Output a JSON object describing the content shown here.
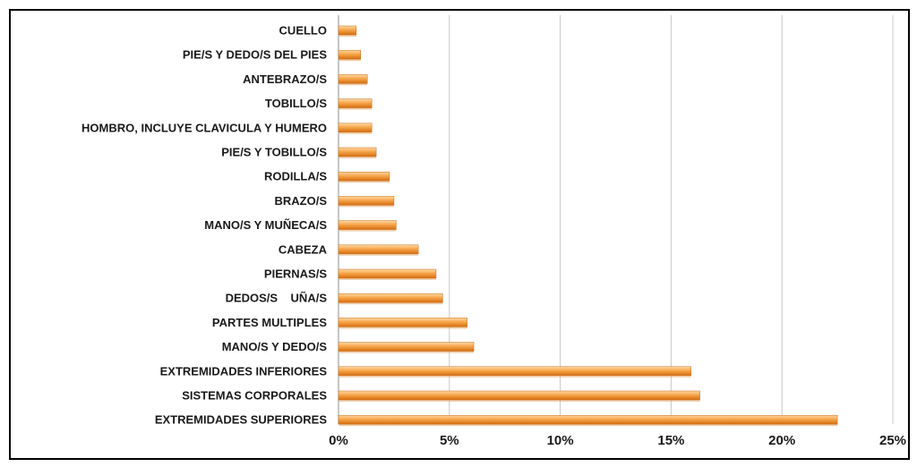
{
  "chart_data": {
    "type": "bar",
    "orientation": "horizontal",
    "categories": [
      "CUELLO",
      "PIE/S Y DEDO/S DEL PIES",
      "ANTEBRAZO/S",
      "TOBILLO/S",
      "HOMBRO, INCLUYE CLAVICULA Y HUMERO",
      "PIE/S Y TOBILLO/S",
      "RODILLA/S",
      "BRAZO/S",
      "MANO/S Y MUÑECA/S",
      "CABEZA",
      "PIERNAS/S",
      "DEDOS/S    UÑA/S",
      "PARTES MULTIPLES",
      "MANO/S Y DEDO/S",
      "EXTREMIDADES INFERIORES",
      "SISTEMAS CORPORALES",
      "EXTREMIDADES SUPERIORES"
    ],
    "values": [
      0.8,
      1.0,
      1.3,
      1.5,
      1.5,
      1.7,
      2.3,
      2.5,
      2.6,
      3.6,
      4.4,
      4.7,
      5.8,
      6.1,
      15.9,
      16.3,
      22.5
    ],
    "xlim": [
      0,
      25
    ],
    "xticks": [
      "0%",
      "5%",
      "10%",
      "15%",
      "20%",
      "25%"
    ],
    "grid": "vertical",
    "bar_color": "#f0902c",
    "title": "",
    "xlabel": "",
    "ylabel": ""
  }
}
